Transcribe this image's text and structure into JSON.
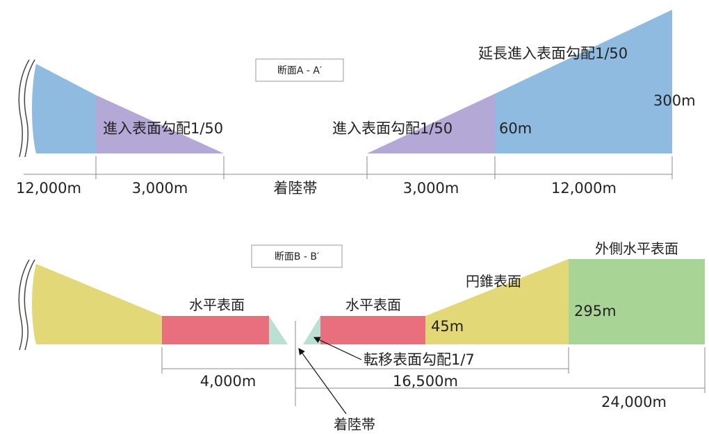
{
  "colors": {
    "approach": "#b4a9d6",
    "extended_approach": "#8fbbe0",
    "conical": "#e3d877",
    "horizontal": "#e96f7f",
    "transitional": "#b9e0d2",
    "outer_horizontal": "#a8d596"
  },
  "section_a": {
    "title": "断面A - A′",
    "approach_left": "進入表面勾配1/50",
    "approach_right": "進入表面勾配1/50",
    "extended": "延長進入表面勾配1/50",
    "height_60": "60m",
    "height_300": "300m",
    "dim_12000_left": "12,000m",
    "dim_3000_left": "3,000m",
    "landing_strip": "着陸帯",
    "dim_3000_right": "3,000m",
    "dim_12000_right": "12,000m"
  },
  "section_b": {
    "title": "断面B - B′",
    "horizontal_left": "水平表面",
    "horizontal_right": "水平表面",
    "conical": "円錐表面",
    "outer_horizontal": "外側水平表面",
    "height_45": "45m",
    "height_295": "295m",
    "transitional": "転移表面勾配1/7",
    "dim_4000": "4,000m",
    "dim_16500": "16,500m",
    "dim_24000": "24,000m",
    "landing_strip": "着陸帯"
  }
}
